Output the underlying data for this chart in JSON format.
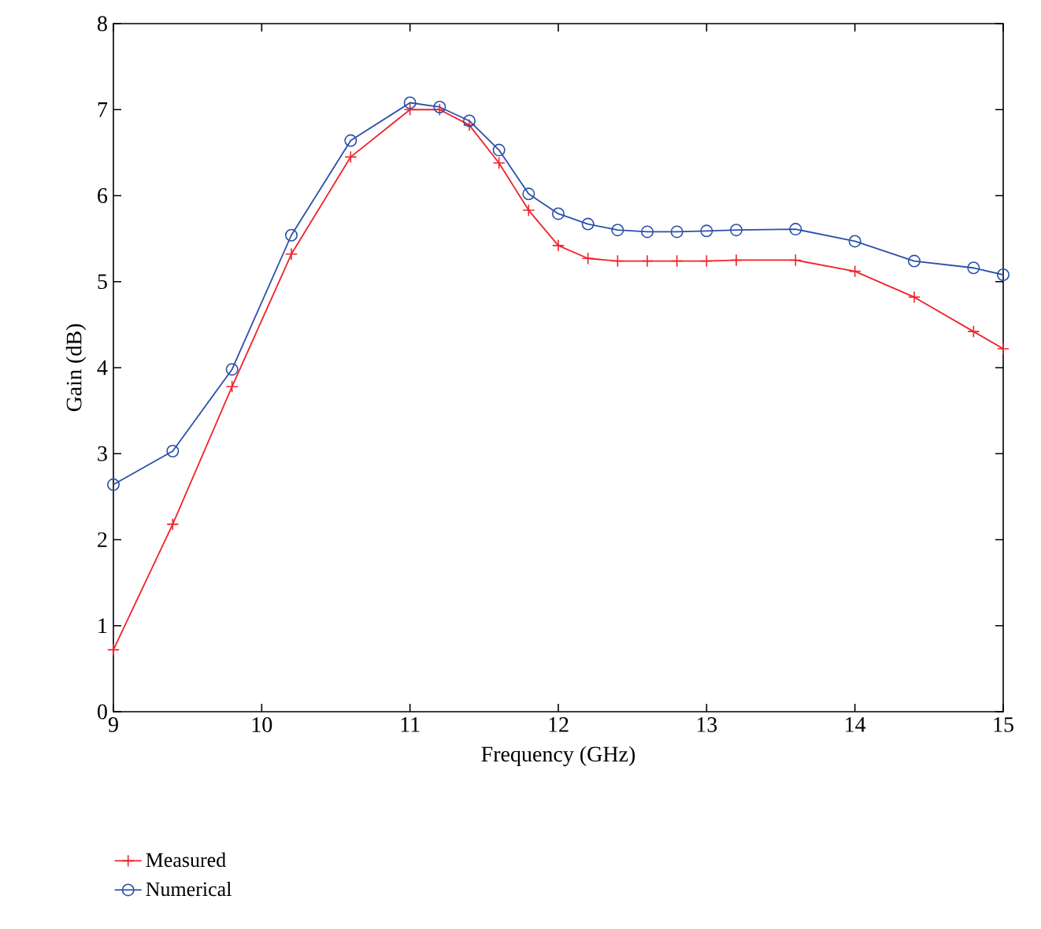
{
  "chart_data": {
    "type": "line",
    "xlabel": "Frequency (GHz)",
    "ylabel": "Gain (dB)",
    "x": [
      9,
      9.4,
      9.8,
      10.2,
      10.6,
      11,
      11.2,
      11.4,
      11.6,
      11.8,
      12,
      12.2,
      12.4,
      12.6,
      12.8,
      13,
      13.2,
      13.6,
      14,
      14.4,
      14.8,
      15
    ],
    "series": [
      {
        "name": "Measured",
        "color": "#f0222a",
        "marker": "cross",
        "values": [
          0.72,
          2.18,
          3.78,
          5.32,
          6.45,
          7.0,
          7.0,
          6.82,
          6.38,
          5.83,
          5.42,
          5.27,
          5.24,
          5.24,
          5.24,
          5.24,
          5.25,
          5.25,
          5.12,
          4.82,
          4.42,
          4.22
        ]
      },
      {
        "name": "Numerical",
        "color": "#2b50a8",
        "marker": "circle",
        "values": [
          2.64,
          3.03,
          3.98,
          5.54,
          6.64,
          7.08,
          7.03,
          6.87,
          6.53,
          6.02,
          5.79,
          5.67,
          5.6,
          5.58,
          5.58,
          5.59,
          5.6,
          5.61,
          5.47,
          5.24,
          5.16,
          5.08
        ]
      }
    ],
    "xlim": [
      9,
      15
    ],
    "xticks": [
      9,
      10,
      11,
      12,
      13,
      14,
      15
    ],
    "ylim": [
      0,
      8
    ],
    "yticks": [
      0,
      1,
      2,
      3,
      4,
      5,
      6,
      7,
      8
    ],
    "grid": false,
    "legend": "bottom left",
    "line_style": "solid"
  }
}
